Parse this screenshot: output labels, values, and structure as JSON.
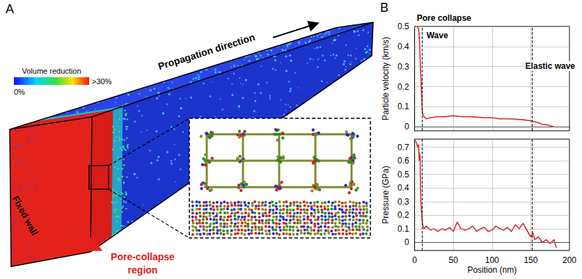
{
  "diagram": {
    "panel": "A",
    "title": "Propagation direction",
    "colorbar": {
      "title": "Volume reduction",
      "min_label": "0%",
      "max_label": ">30%"
    },
    "labels": {
      "wall": "Fixed wall",
      "region": "Pore-collapse region"
    }
  },
  "chart_data": [
    {
      "type": "line",
      "panel": "B",
      "y_label": "Particle velocity (km/s)",
      "color": "#d42a2a",
      "x": [
        0,
        3,
        5,
        6,
        8,
        10,
        12,
        15,
        20,
        30,
        40,
        50,
        60,
        70,
        80,
        90,
        100,
        110,
        120,
        130,
        140,
        150,
        155,
        160,
        165,
        170,
        175,
        180
      ],
      "values": [
        0.5,
        0.5,
        0.49,
        0.45,
        0.25,
        0.07,
        0.05,
        0.04,
        0.045,
        0.05,
        0.05,
        0.055,
        0.05,
        0.05,
        0.048,
        0.045,
        0.045,
        0.04,
        0.04,
        0.038,
        0.035,
        0.03,
        0.025,
        0.02,
        0.012,
        0.01,
        0.005,
        0
      ],
      "xlim": [
        0,
        200
      ],
      "xticks": [
        0,
        50,
        100,
        150,
        200
      ],
      "ylim": [
        -0.02,
        0.5
      ],
      "yticks": [
        0,
        0.1,
        0.2,
        0.3,
        0.4,
        0.5
      ],
      "grid": true,
      "tick_labels": "y",
      "vlines": [
        10,
        152
      ],
      "annotations": [
        {
          "text": "Pore collapse",
          "x": 10
        },
        {
          "text": "Wave",
          "x": 10
        },
        {
          "text": "Elastic wave",
          "x": 152
        }
      ]
    },
    {
      "type": "line",
      "x_label": "Position (nm)",
      "y_label": "Pressure (GPa)",
      "color": "#d42a2a",
      "x": [
        0,
        2,
        4,
        5,
        6,
        7,
        8,
        10,
        12,
        15,
        20,
        25,
        30,
        35,
        40,
        45,
        50,
        55,
        60,
        65,
        70,
        75,
        80,
        85,
        90,
        95,
        100,
        105,
        110,
        115,
        120,
        125,
        130,
        135,
        140,
        145,
        150,
        153,
        155,
        160,
        165,
        170,
        175,
        180,
        183
      ],
      "values": [
        0.75,
        0.74,
        0.7,
        0.72,
        0.6,
        0.65,
        0.3,
        0.14,
        0.1,
        0.12,
        0.09,
        0.1,
        0.08,
        0.1,
        0.09,
        0.11,
        0.08,
        0.15,
        0.1,
        0.09,
        0.1,
        0.12,
        0.08,
        0.1,
        0.11,
        0.08,
        0.09,
        0.12,
        0.1,
        0.09,
        0.11,
        0.08,
        0.13,
        0.1,
        0.14,
        0.09,
        0.04,
        0.07,
        0.02,
        0.04,
        0,
        0.02,
        -0.01,
        0.02,
        -0.04
      ],
      "xlim": [
        0,
        200
      ],
      "xticks": [
        0,
        50,
        100,
        150,
        200
      ],
      "ylim": [
        -0.06,
        0.76
      ],
      "yticks": [
        0,
        0.1,
        0.2,
        0.3,
        0.4,
        0.5,
        0.6,
        0.7
      ],
      "grid": true,
      "tick_labels": true,
      "vlines": [
        10,
        152
      ]
    }
  ]
}
